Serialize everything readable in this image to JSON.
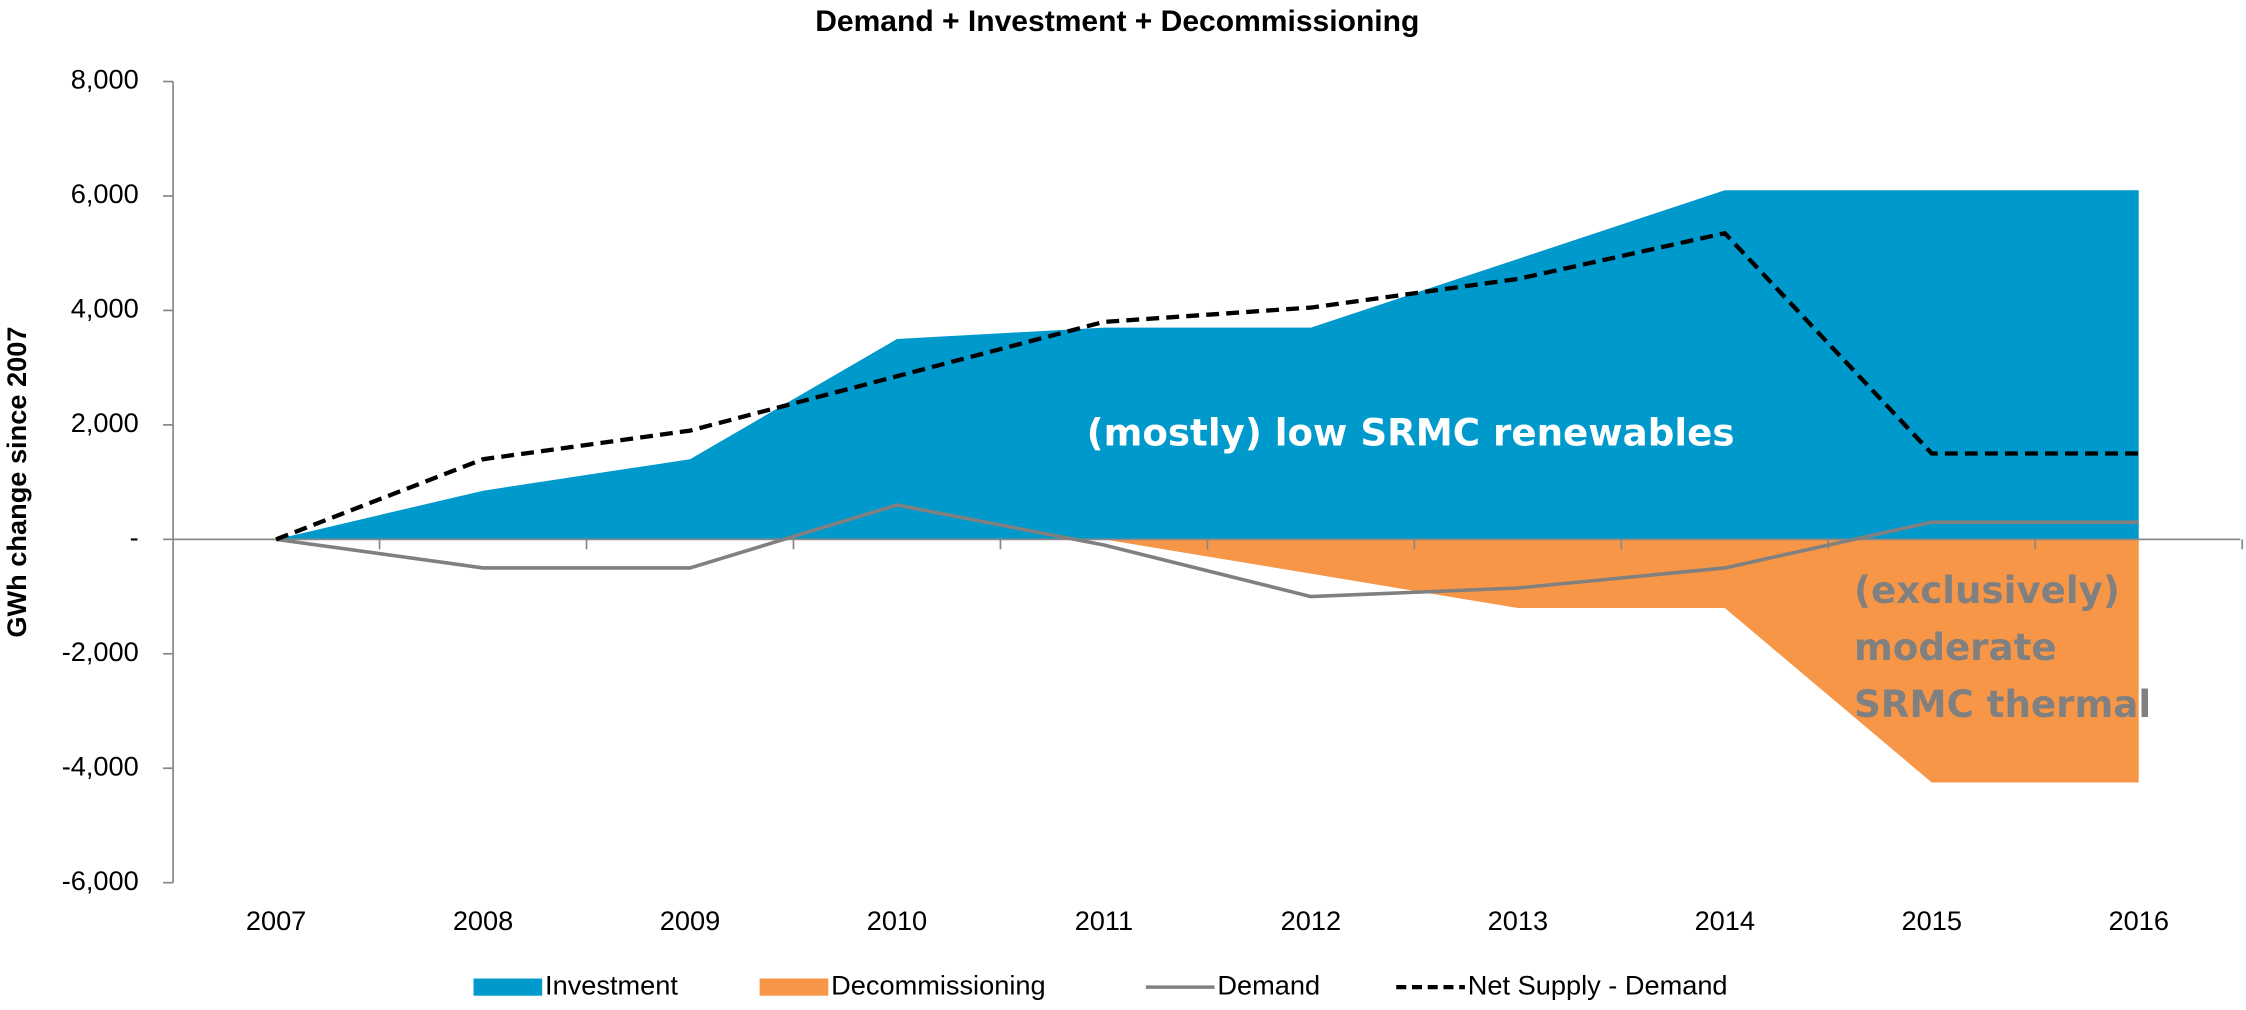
{
  "chart_data": {
    "type": "area",
    "title": "Demand + Investment + Decommissioning",
    "y_label": "GWh change since 2007",
    "categories": [
      "2007",
      "2008",
      "2009",
      "2010",
      "2011",
      "2012",
      "2013",
      "2014",
      "2015",
      "2016"
    ],
    "series": [
      {
        "name": "Investment",
        "color": "#0099cc",
        "kind": "area",
        "values": [
          0,
          850,
          1400,
          3500,
          3700,
          3700,
          4900,
          6100,
          6100,
          6100
        ]
      },
      {
        "name": "Decommissioning",
        "color": "#f79646",
        "kind": "area",
        "values": [
          0,
          0,
          0,
          0,
          0,
          -600,
          -1200,
          -1200,
          -4250,
          -4250
        ]
      },
      {
        "name": "Demand",
        "color": "#808080",
        "kind": "line",
        "values": [
          0,
          -500,
          -500,
          600,
          -100,
          -1000,
          -850,
          -500,
          300,
          300
        ]
      },
      {
        "name": "Net Supply - Demand",
        "color": "#000000",
        "kind": "dashed",
        "values": [
          0,
          1400,
          1900,
          2850,
          3800,
          4050,
          4550,
          5350,
          1500,
          1500
        ]
      }
    ],
    "ylim": [
      -6000,
      8000
    ],
    "yticks": [
      {
        "value": -6000,
        "label": "-6,000"
      },
      {
        "value": -4000,
        "label": "-4,000"
      },
      {
        "value": -2000,
        "label": "-2,000"
      },
      {
        "value": 0,
        "label": "-"
      },
      {
        "value": 2000,
        "label": "2,000"
      },
      {
        "value": 4000,
        "label": "4,000"
      },
      {
        "value": 6000,
        "label": "6,000"
      },
      {
        "value": 8000,
        "label": "8,000"
      }
    ],
    "annotations": [
      {
        "lines": [
          "(mostly) low SRMC renewables"
        ],
        "color": "#ffffff"
      },
      {
        "lines": [
          "(exclusively)",
          "moderate",
          "SRMC thermal"
        ],
        "color": "#808080"
      }
    ]
  }
}
